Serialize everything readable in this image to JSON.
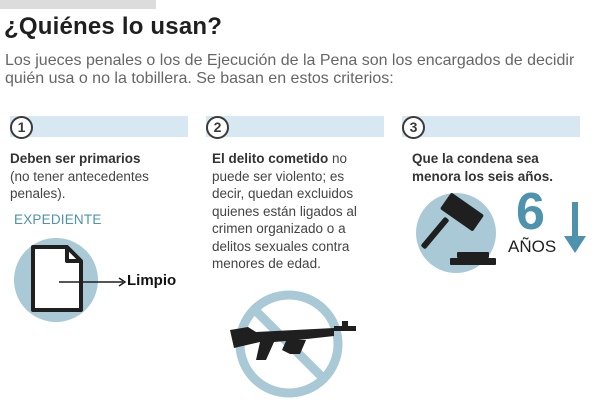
{
  "header": {
    "title": "¿Quiénes lo usan?",
    "intro": "Los jueces penales o los de Ejecución de la Pena son los encargados de decidir quién usa o no la tobillera. Se basan en estos criterios:"
  },
  "criteria": [
    {
      "number": "1",
      "bold": "Deben ser primarios",
      "text": "(no tener antecedentes penales).",
      "label": "EXPEDIENTE",
      "tag": "Limpio",
      "icon": "document-icon"
    },
    {
      "number": "2",
      "bold": "El delito cometido",
      "text": "no puede ser violento; es decir, quedan excluidos quienes están ligados al crimen organizado o a delitos sexuales contra menores de edad.",
      "icon": "no-rifle-icon"
    },
    {
      "number": "3",
      "bold": "Que la condena sea menora los seis años.",
      "text": "",
      "big_number": "6",
      "unit": "AÑOS",
      "icon": "gavel-icon"
    }
  ],
  "colors": {
    "accent": "#4e93ad",
    "bar": "#d7e8f2",
    "circle": "#a9c9d6",
    "icon": "#2b2b2b"
  }
}
